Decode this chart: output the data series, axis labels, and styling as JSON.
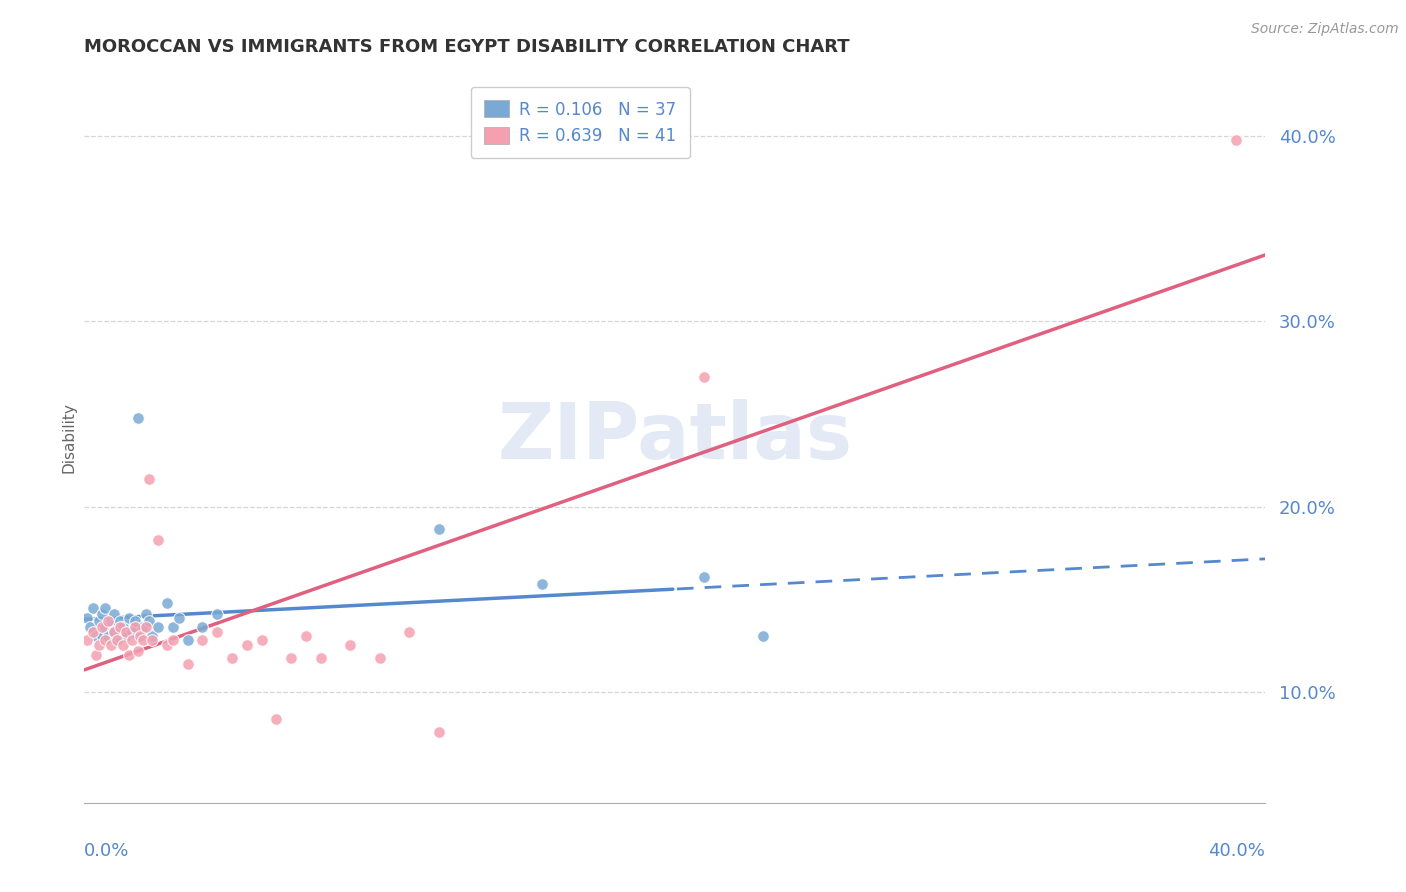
{
  "title": "MOROCCAN VS IMMIGRANTS FROM EGYPT DISABILITY CORRELATION CHART",
  "source": "Source: ZipAtlas.com",
  "ylabel": "Disability",
  "y_ticks": [
    0.1,
    0.2,
    0.3,
    0.4
  ],
  "y_tick_labels": [
    "10.0%",
    "20.0%",
    "30.0%",
    "40.0%"
  ],
  "x_range": [
    0.0,
    0.4
  ],
  "y_range": [
    0.04,
    0.435
  ],
  "watermark": "ZIPatlas",
  "moroccan_scatter_x": [
    0.001,
    0.002,
    0.003,
    0.004,
    0.005,
    0.006,
    0.006,
    0.007,
    0.007,
    0.008,
    0.009,
    0.01,
    0.01,
    0.011,
    0.012,
    0.013,
    0.014,
    0.015,
    0.016,
    0.017,
    0.018,
    0.019,
    0.02,
    0.021,
    0.022,
    0.023,
    0.025,
    0.028,
    0.03,
    0.032,
    0.035,
    0.04,
    0.045,
    0.12,
    0.155,
    0.21,
    0.23
  ],
  "moroccan_scatter_y": [
    0.14,
    0.135,
    0.145,
    0.13,
    0.138,
    0.142,
    0.13,
    0.135,
    0.145,
    0.13,
    0.138,
    0.142,
    0.133,
    0.128,
    0.138,
    0.135,
    0.13,
    0.14,
    0.132,
    0.138,
    0.248,
    0.13,
    0.135,
    0.142,
    0.138,
    0.13,
    0.135,
    0.148,
    0.135,
    0.14,
    0.128,
    0.135,
    0.142,
    0.188,
    0.158,
    0.162,
    0.13
  ],
  "egypt_scatter_x": [
    0.001,
    0.003,
    0.004,
    0.005,
    0.006,
    0.007,
    0.008,
    0.009,
    0.01,
    0.011,
    0.012,
    0.013,
    0.014,
    0.015,
    0.016,
    0.017,
    0.018,
    0.019,
    0.02,
    0.021,
    0.022,
    0.023,
    0.025,
    0.028,
    0.03,
    0.035,
    0.04,
    0.045,
    0.05,
    0.055,
    0.06,
    0.065,
    0.07,
    0.075,
    0.08,
    0.09,
    0.1,
    0.11,
    0.12,
    0.21,
    0.39
  ],
  "egypt_scatter_y": [
    0.128,
    0.132,
    0.12,
    0.125,
    0.135,
    0.128,
    0.138,
    0.125,
    0.132,
    0.128,
    0.135,
    0.125,
    0.132,
    0.12,
    0.128,
    0.135,
    0.122,
    0.13,
    0.128,
    0.135,
    0.215,
    0.128,
    0.182,
    0.125,
    0.128,
    0.115,
    0.128,
    0.132,
    0.118,
    0.125,
    0.128,
    0.085,
    0.118,
    0.13,
    0.118,
    0.125,
    0.118,
    0.132,
    0.078,
    0.27,
    0.398
  ],
  "moroccan_color": "#7aaad4",
  "egypt_color": "#f4a0b0",
  "moroccan_line_color": "#5588cc",
  "egypt_line_color": "#e06080",
  "moroccan_line_solid_end": 0.2,
  "background_color": "#ffffff",
  "grid_color": "#cccccc",
  "title_color": "#333333",
  "axis_label_color": "#5588cc"
}
